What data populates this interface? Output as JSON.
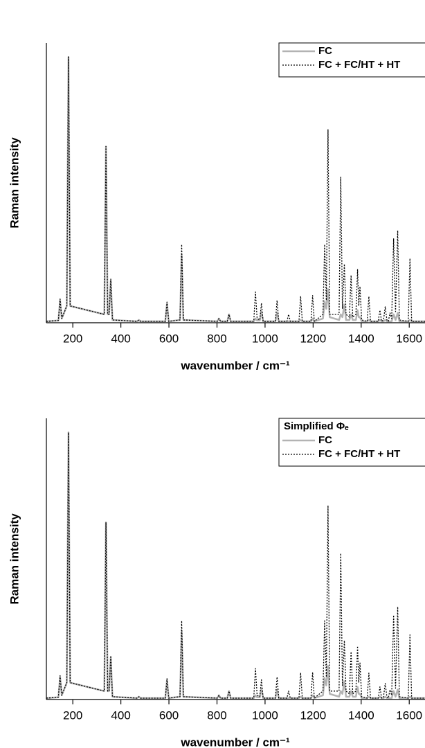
{
  "chart_data": [
    {
      "type": "line",
      "xlabel": "wavenumber / cm⁻¹",
      "ylabel": "Raman intensity",
      "xlim": [
        90,
        1680
      ],
      "ylim": [
        0,
        100
      ],
      "xticks": [
        200,
        400,
        600,
        800,
        1000,
        1200,
        1400,
        1600
      ],
      "x": [
        90,
        140,
        147,
        154,
        175,
        182,
        189,
        331,
        338,
        345,
        351,
        358,
        365,
        468,
        475,
        482,
        585,
        592,
        599,
        646,
        653,
        660,
        801,
        808,
        815,
        843,
        850,
        857,
        953,
        960,
        967,
        978,
        985,
        992,
        1043,
        1050,
        1057,
        1091,
        1098,
        1105,
        1141,
        1148,
        1155,
        1191,
        1198,
        1205,
        1241,
        1248,
        1255,
        1262,
        1269,
        1308,
        1315,
        1322,
        1330,
        1337,
        1351,
        1358,
        1365,
        1378,
        1385,
        1390,
        1395,
        1402,
        1425,
        1432,
        1439,
        1471,
        1478,
        1485,
        1493,
        1500,
        1507,
        1513,
        1520,
        1527,
        1535,
        1543,
        1552,
        1559,
        1596,
        1603,
        1610,
        1680
      ],
      "series": [
        {
          "name": "FC",
          "color": "#b3b3b3",
          "line_style": "solid",
          "values": [
            0.5,
            0.8,
            8,
            1.5,
            6,
            95,
            6,
            3,
            63,
            3,
            3,
            15,
            1,
            0.5,
            1,
            0.5,
            0.5,
            7,
            0.5,
            1,
            24,
            1,
            0.5,
            1.5,
            0.5,
            0.5,
            3,
            0.5,
            0.5,
            1.5,
            0.8,
            0.8,
            4,
            0.5,
            0.5,
            3.5,
            0.5,
            0.5,
            0.5,
            0.5,
            0.5,
            1,
            0.5,
            0.5,
            1.5,
            0.5,
            1.5,
            7.7,
            5,
            12,
            2,
            1,
            3,
            2,
            6.5,
            1,
            1,
            3,
            1,
            1,
            4.5,
            2,
            2,
            0.5,
            0.5,
            1,
            0.5,
            0.5,
            1,
            0.5,
            0.5,
            1,
            0.5,
            0.5,
            0.5,
            0.5,
            3,
            1,
            3.5,
            0.5,
            0.5,
            1,
            0.5,
            0.5
          ]
        },
        {
          "name": "FC + FC/HT + HT",
          "color": "#000000",
          "line_style": "dotted",
          "values": [
            0.5,
            0.8,
            8.5,
            1.5,
            6,
            95,
            6,
            3,
            63,
            3,
            3,
            15.6,
            1,
            0.5,
            1,
            0.5,
            0.5,
            7.4,
            0.5,
            1,
            28,
            1,
            0.5,
            1.5,
            0.5,
            0.5,
            3,
            0.5,
            0.5,
            11,
            1.5,
            1,
            7,
            0.5,
            0.5,
            8,
            0.5,
            0.5,
            3,
            0.5,
            0.5,
            9.5,
            0.5,
            0.5,
            9.7,
            0.5,
            3,
            28,
            8,
            69,
            3,
            3,
            52,
            5,
            21,
            3,
            2,
            17,
            2,
            3,
            19,
            6,
            13,
            1,
            0.5,
            9.4,
            0.5,
            0.5,
            4.5,
            0.5,
            1,
            5.7,
            1,
            0.5,
            3.5,
            1.5,
            30,
            4,
            33,
            1,
            0.5,
            23,
            0.5,
            0.5
          ]
        }
      ]
    },
    {
      "type": "line",
      "xlabel": "wavenumber / cm⁻¹",
      "ylabel": "Raman intensity",
      "legend_title": "Simplified Φₑ",
      "xlim": [
        90,
        1680
      ],
      "ylim": [
        0,
        100
      ],
      "xticks": [
        200,
        400,
        600,
        800,
        1000,
        1200,
        1400,
        1600
      ],
      "x": [
        90,
        140,
        147,
        154,
        175,
        182,
        189,
        331,
        338,
        345,
        351,
        358,
        365,
        468,
        475,
        482,
        585,
        592,
        599,
        646,
        653,
        660,
        801,
        808,
        815,
        843,
        850,
        857,
        953,
        960,
        967,
        978,
        985,
        992,
        1043,
        1050,
        1057,
        1091,
        1098,
        1105,
        1141,
        1148,
        1155,
        1191,
        1198,
        1205,
        1241,
        1248,
        1255,
        1262,
        1269,
        1308,
        1315,
        1322,
        1330,
        1337,
        1351,
        1358,
        1365,
        1378,
        1385,
        1390,
        1395,
        1402,
        1425,
        1432,
        1439,
        1471,
        1478,
        1485,
        1493,
        1500,
        1507,
        1513,
        1520,
        1527,
        1535,
        1543,
        1552,
        1559,
        1596,
        1603,
        1610,
        1680
      ],
      "series": [
        {
          "name": "FC",
          "color": "#b3b3b3",
          "line_style": "solid",
          "values": [
            0.5,
            0.8,
            8,
            1.5,
            6,
            95,
            6,
            3,
            63,
            3,
            3,
            15,
            1,
            0.5,
            1,
            0.5,
            0.5,
            7,
            0.5,
            1,
            24,
            1,
            0.5,
            1.5,
            0.5,
            0.5,
            3,
            0.5,
            0.5,
            1.5,
            0.8,
            0.8,
            4,
            0.5,
            0.5,
            3.5,
            0.5,
            0.5,
            0.5,
            0.5,
            0.5,
            1,
            0.5,
            0.5,
            1.5,
            0.5,
            1.5,
            7.7,
            5,
            12,
            2,
            1,
            3,
            2,
            6.5,
            1,
            1,
            3,
            1,
            1,
            4.5,
            2,
            2,
            0.5,
            0.5,
            1,
            0.5,
            0.5,
            1,
            0.5,
            0.5,
            1,
            0.5,
            0.5,
            0.5,
            0.5,
            3,
            1,
            3.5,
            0.5,
            0.5,
            1,
            0.5,
            0.5
          ]
        },
        {
          "name": "FC + FC/HT + HT",
          "color": "#000000",
          "line_style": "dotted",
          "values": [
            0.5,
            0.8,
            8.5,
            1.5,
            6,
            95,
            6,
            3,
            63,
            3,
            3,
            15.6,
            1,
            0.5,
            1,
            0.5,
            0.5,
            7.4,
            0.5,
            1,
            28,
            1,
            0.5,
            1.5,
            0.5,
            0.5,
            3,
            0.5,
            0.5,
            11,
            1.5,
            1,
            7,
            0.5,
            0.5,
            8,
            0.5,
            0.5,
            3,
            0.5,
            0.5,
            9.5,
            0.5,
            0.5,
            9.7,
            0.5,
            3,
            28,
            8,
            69,
            3,
            3,
            52,
            5,
            21,
            3,
            2,
            17,
            2,
            3,
            19,
            6,
            13,
            1,
            0.5,
            9.4,
            0.5,
            0.5,
            4.5,
            0.5,
            1,
            5.7,
            1,
            0.5,
            3.5,
            1.5,
            30,
            4,
            33,
            1,
            0.5,
            23,
            0.5,
            0.5
          ]
        }
      ]
    }
  ]
}
